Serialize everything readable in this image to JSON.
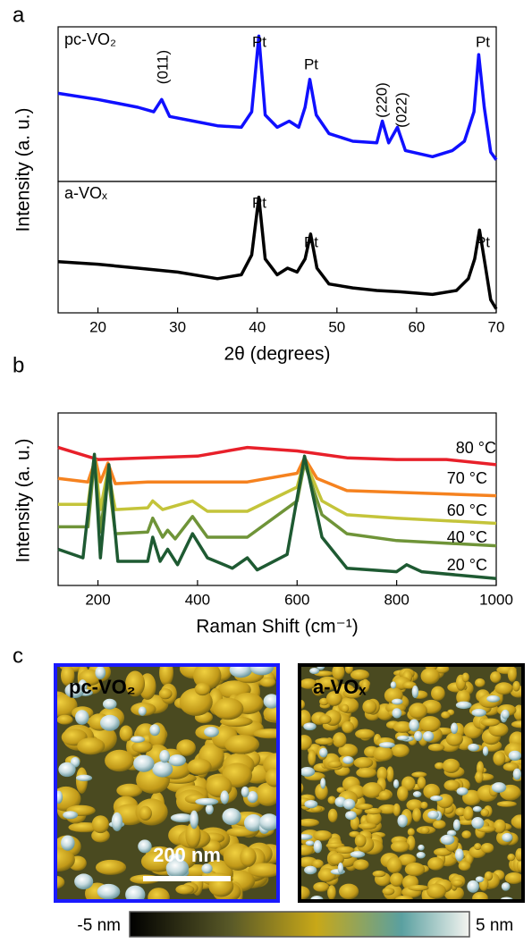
{
  "chart_data": [
    {
      "type": "line",
      "label": "a",
      "ylabel": "Intensity (a. u.)",
      "xlim": [
        15,
        70
      ],
      "ylim": [
        0,
        100
      ],
      "series": [
        {
          "name": "pc-VO₂",
          "color": "#1010ff",
          "x": [
            15,
            20,
            25,
            27,
            28,
            29,
            32,
            35,
            38,
            39.3,
            40.2,
            41,
            42.5,
            44,
            45.2,
            46,
            46.6,
            47.4,
            49,
            52,
            55,
            55.7,
            56.5,
            57.6,
            58.6,
            62,
            64.5,
            66,
            67.2,
            67.8,
            68.5,
            69.3,
            70
          ],
          "values": [
            57,
            53,
            48,
            45,
            53,
            42,
            39,
            36,
            35,
            45,
            94,
            43,
            35,
            39,
            35,
            48,
            66,
            43,
            31,
            26,
            25,
            39,
            25,
            35,
            20,
            16,
            20,
            26,
            45,
            82,
            48,
            19,
            14
          ]
        }
      ],
      "annotations": [
        "(011)",
        "Pt",
        "Pt",
        "(220)",
        "(022)",
        "Pt"
      ]
    },
    {
      "type": "line",
      "xlabel": "2θ (degrees)",
      "xlim": [
        15,
        70
      ],
      "xticks": [
        20,
        30,
        40,
        50,
        60,
        70
      ],
      "ylim": [
        0,
        100
      ],
      "series": [
        {
          "name": "a-VOₓ",
          "color": "#000000",
          "x": [
            15,
            20,
            25,
            30,
            35,
            38,
            39.3,
            40.2,
            41,
            42.5,
            43.8,
            45,
            46,
            46.7,
            47.5,
            49,
            52,
            55,
            58,
            62,
            65,
            66.5,
            67.3,
            67.9,
            68.6,
            69.3,
            70
          ],
          "values": [
            39,
            37,
            34,
            31,
            26,
            29,
            44,
            88,
            41,
            29,
            34,
            31,
            41,
            60,
            34,
            22,
            19,
            17,
            16,
            14,
            17,
            26,
            41,
            63,
            37,
            10,
            3
          ]
        }
      ],
      "annotations": [
        "Pt",
        "Pt",
        "Pt"
      ]
    },
    {
      "type": "line",
      "label": "b",
      "xlabel": "Raman Shift (cm⁻¹)",
      "ylabel": "Intensity (a. u.)",
      "xlim": [
        120,
        1000
      ],
      "xticks": [
        200,
        400,
        600,
        800,
        1000
      ],
      "ylim": [
        0,
        100
      ],
      "series": [
        {
          "name": "80 °C",
          "color": "#e8202a",
          "x": [
            120,
            200,
            400,
            500,
            600,
            700,
            800,
            900,
            1000
          ],
          "values": [
            80,
            73,
            75,
            80,
            78,
            74,
            73,
            73,
            70
          ]
        },
        {
          "name": "70 °C",
          "color": "#f5821f",
          "x": [
            120,
            180,
            195,
            205,
            220,
            235,
            300,
            400,
            500,
            600,
            615,
            640,
            700,
            800,
            1000
          ],
          "values": [
            62,
            60,
            73,
            60,
            71,
            59,
            60,
            60,
            60,
            65,
            74,
            62,
            55,
            54,
            52
          ]
        },
        {
          "name": "60 °C",
          "color": "#c4c43a",
          "x": [
            120,
            180,
            193,
            205,
            220,
            235,
            300,
            310,
            330,
            390,
            420,
            500,
            600,
            615,
            650,
            700,
            800,
            1000
          ],
          "values": [
            47,
            47,
            75,
            44,
            67,
            44,
            45,
            49,
            44,
            49,
            43,
            43,
            57,
            73,
            49,
            41,
            39,
            36
          ]
        },
        {
          "name": "40 °C",
          "color": "#6f9438",
          "x": [
            120,
            180,
            193,
            205,
            220,
            235,
            300,
            310,
            330,
            340,
            355,
            390,
            420,
            500,
            600,
            615,
            650,
            700,
            800,
            1000
          ],
          "values": [
            34,
            34,
            73,
            31,
            65,
            30,
            31,
            39,
            28,
            32,
            27,
            40,
            28,
            28,
            49,
            71,
            41,
            30,
            26,
            23
          ]
        },
        {
          "name": "20 °C",
          "color": "#1e5a32",
          "x": [
            120,
            170,
            193,
            205,
            222,
            240,
            300,
            310,
            325,
            340,
            360,
            390,
            420,
            470,
            500,
            520,
            580,
            615,
            650,
            700,
            800,
            820,
            850,
            1000
          ],
          "values": [
            21,
            16,
            76,
            16,
            70,
            14,
            14,
            28,
            14,
            21,
            12,
            30,
            16,
            10,
            16,
            9,
            18,
            75,
            28,
            10,
            8,
            12,
            8,
            4
          ]
        }
      ]
    }
  ],
  "panel_c": {
    "label": "c",
    "images": [
      {
        "label": "pc-VO₂"
      },
      {
        "label": "a-VOₓ"
      }
    ],
    "scale_bar": "200 nm",
    "colorbar": {
      "min_label": "-5 nm",
      "max_label": "5 nm"
    }
  }
}
